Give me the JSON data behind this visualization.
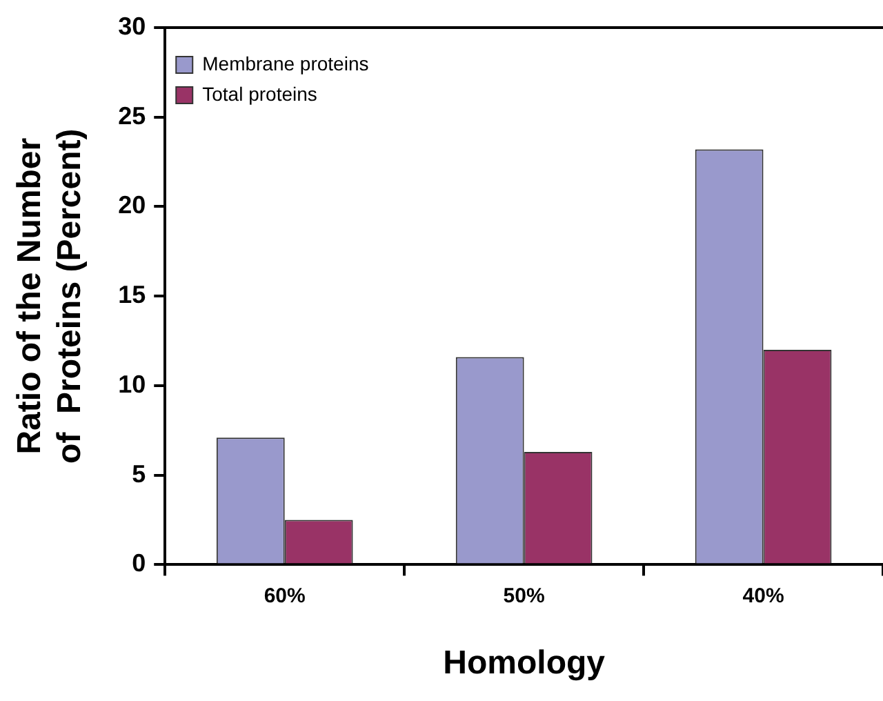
{
  "chart_data": {
    "type": "bar",
    "xlabel": "Homology",
    "ylabel": "Ratio of the Number\nof  Proteins (Percent)",
    "categories": [
      "60%",
      "50%",
      "40%"
    ],
    "series": [
      {
        "name": "Membrane proteins",
        "color": "#9999cc",
        "values": [
          7.1,
          11.6,
          23.2
        ]
      },
      {
        "name": "Total proteins",
        "color": "#993366",
        "values": [
          2.5,
          6.3,
          12.0
        ]
      }
    ],
    "ylim": [
      0,
      30
    ],
    "yticks": [
      0,
      5,
      10,
      15,
      20,
      25,
      30
    ],
    "grid": false,
    "legend": "top left"
  }
}
